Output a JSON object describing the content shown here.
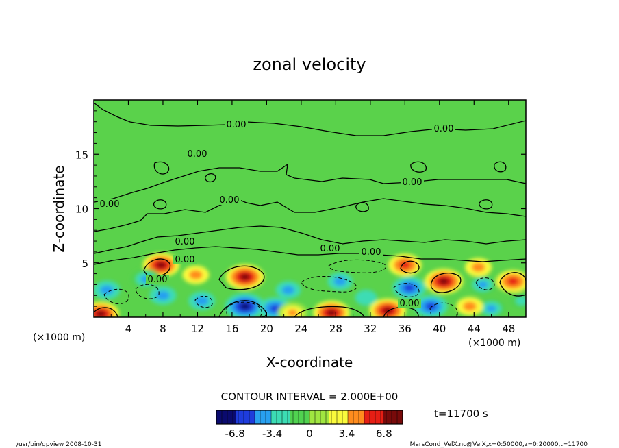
{
  "chart_data": {
    "type": "heatmap",
    "title": "zonal velocity",
    "xlabel": "X-coordinate",
    "ylabel": "Z-coordinate",
    "x_units": "(×1000 m)",
    "y_units": "(×1000 m)",
    "xlim": [
      0,
      50
    ],
    "ylim": [
      0,
      20
    ],
    "x_ticks": [
      4,
      8,
      12,
      16,
      20,
      24,
      28,
      32,
      36,
      40,
      44,
      48
    ],
    "y_ticks": [
      5,
      10,
      15
    ],
    "contour_interval_label": "CONTOUR INTERVAL = 2.000E+00",
    "time_label": "t=11700 s",
    "contour_labels": [
      "0.00",
      "0.00",
      "0.00",
      "0.00",
      "0.00",
      "0.00",
      "0.00",
      "0.00",
      "0.00",
      "0.00",
      "0.00",
      "0.00"
    ],
    "colorbar": {
      "min": -8.5,
      "max": 8.5,
      "tick_values": [
        -6.8,
        -3.4,
        0,
        3.4,
        6.8
      ],
      "tick_labels": [
        "-6.8",
        "-3.4",
        "0",
        "3.4",
        "6.8"
      ]
    },
    "features": [
      {
        "sign": "positive",
        "x": 0.8,
        "z": 0.3,
        "value": 7
      },
      {
        "sign": "positive",
        "x": 7.8,
        "z": 4.8,
        "value": 7
      },
      {
        "sign": "positive",
        "x": 11.8,
        "z": 3.9,
        "value": 4
      },
      {
        "sign": "positive",
        "x": 17.5,
        "z": 3.7,
        "value": 7.5
      },
      {
        "sign": "negative",
        "x": 17.5,
        "z": 1.0,
        "value": -8
      },
      {
        "sign": "negative",
        "x": 21.0,
        "z": 0.8,
        "value": -6
      },
      {
        "sign": "negative",
        "x": 6.0,
        "z": 3.5,
        "value": -5
      },
      {
        "sign": "negative",
        "x": 8.0,
        "z": 2.0,
        "value": -4
      },
      {
        "sign": "negative",
        "x": 1.5,
        "z": 2.5,
        "value": -4
      },
      {
        "sign": "negative",
        "x": 12.5,
        "z": 1.5,
        "value": -4
      },
      {
        "sign": "negative",
        "x": 22.5,
        "z": 2.5,
        "value": -3.5
      },
      {
        "sign": "negative",
        "x": 28.5,
        "z": 3.3,
        "value": -3.5
      },
      {
        "sign": "positive",
        "x": 23.0,
        "z": 0.4,
        "value": 5
      },
      {
        "sign": "positive",
        "x": 27.5,
        "z": 0.4,
        "value": 7
      },
      {
        "sign": "positive",
        "x": 34.0,
        "z": 0.6,
        "value": 7
      },
      {
        "sign": "positive",
        "x": 36.0,
        "z": 4.8,
        "value": 6
      },
      {
        "sign": "negative",
        "x": 36.5,
        "z": 2.7,
        "value": -6
      },
      {
        "sign": "negative",
        "x": 39.0,
        "z": 1.0,
        "value": -6
      },
      {
        "sign": "positive",
        "x": 40.5,
        "z": 3.3,
        "value": 7.5
      },
      {
        "sign": "negative",
        "x": 45.0,
        "z": 3.0,
        "value": -5
      },
      {
        "sign": "positive",
        "x": 44.5,
        "z": 4.6,
        "value": 4
      },
      {
        "sign": "positive",
        "x": 48.5,
        "z": 3.3,
        "value": 6
      },
      {
        "sign": "negative",
        "x": 46.0,
        "z": 0.8,
        "value": -5
      },
      {
        "sign": "positive",
        "x": 43.5,
        "z": 1.0,
        "value": 4
      },
      {
        "sign": "negative",
        "x": 49.5,
        "z": 1.5,
        "value": -3
      },
      {
        "sign": "negative",
        "x": 31.5,
        "z": 1.8,
        "value": -2.5
      }
    ]
  },
  "footer": {
    "left": "/usr/bin/gpview   2008-10-31",
    "right": "MarsCond_VelX.nc@VelX,x=0:50000,z=0:20000,t=11700"
  },
  "colors": {
    "scale": [
      "#0a0a6e",
      "#1e3cdc",
      "#28a0f0",
      "#3cdcb4",
      "#50d250",
      "#a0e640",
      "#fafa3c",
      "#ff8c1e",
      "#e61e14",
      "#780a0a"
    ]
  }
}
